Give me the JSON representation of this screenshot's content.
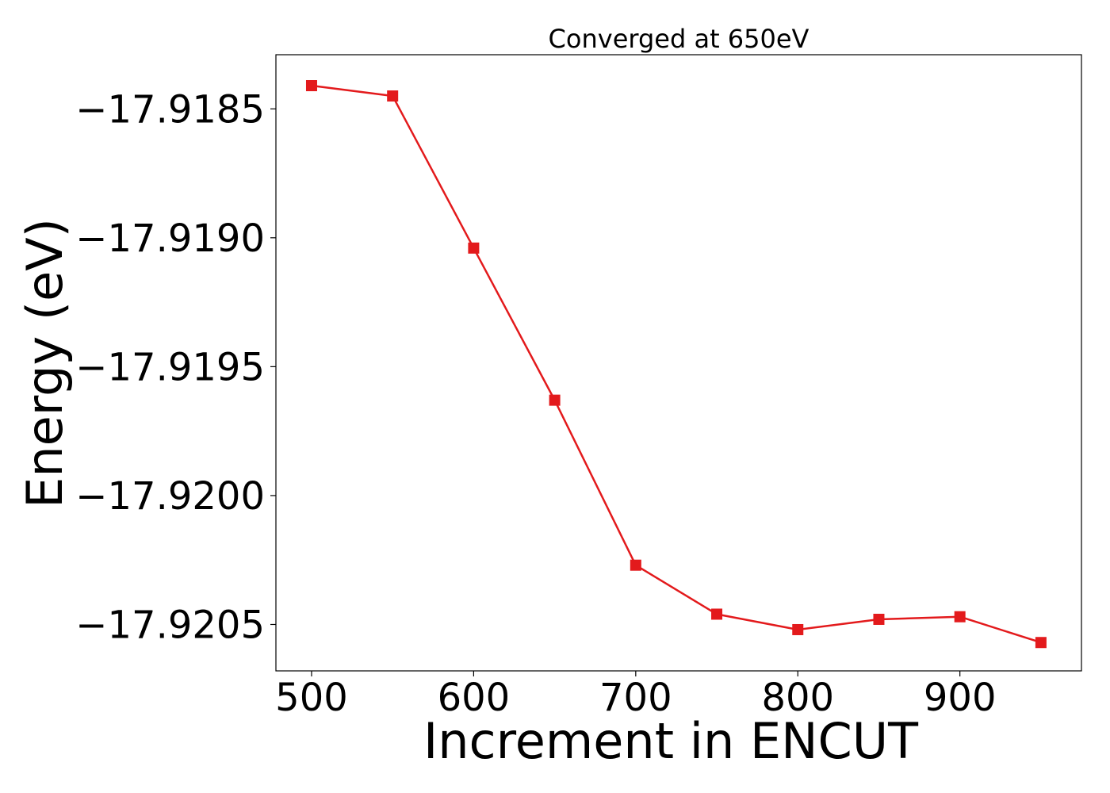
{
  "chart_data": {
    "type": "line",
    "title": "Converged at 650eV",
    "xlabel": "Increment in ENCUT",
    "ylabel": "Energy (eV)",
    "x": [
      500,
      550,
      600,
      650,
      700,
      750,
      800,
      850,
      900,
      950
    ],
    "series": [
      {
        "values": [
          -17.91841,
          -17.91845,
          -17.91904,
          -17.91963,
          -17.92027,
          -17.92046,
          -17.92052,
          -17.92048,
          -17.92047,
          -17.92057
        ],
        "color": "#e31a1c",
        "marker": "square"
      }
    ],
    "xlim": [
      478,
      975
    ],
    "ylim": [
      -17.92068,
      -17.91829
    ],
    "xticks": [
      500,
      600,
      700,
      800,
      900
    ],
    "xtick_labels": [
      "500",
      "600",
      "700",
      "800",
      "900"
    ],
    "yticks": [
      -17.9185,
      -17.919,
      -17.9195,
      -17.92,
      -17.9205
    ],
    "ytick_labels": [
      "−17.9185",
      "−17.9190",
      "−17.9195",
      "−17.9200",
      "−17.9205"
    ],
    "grid": false,
    "legend": "none"
  }
}
